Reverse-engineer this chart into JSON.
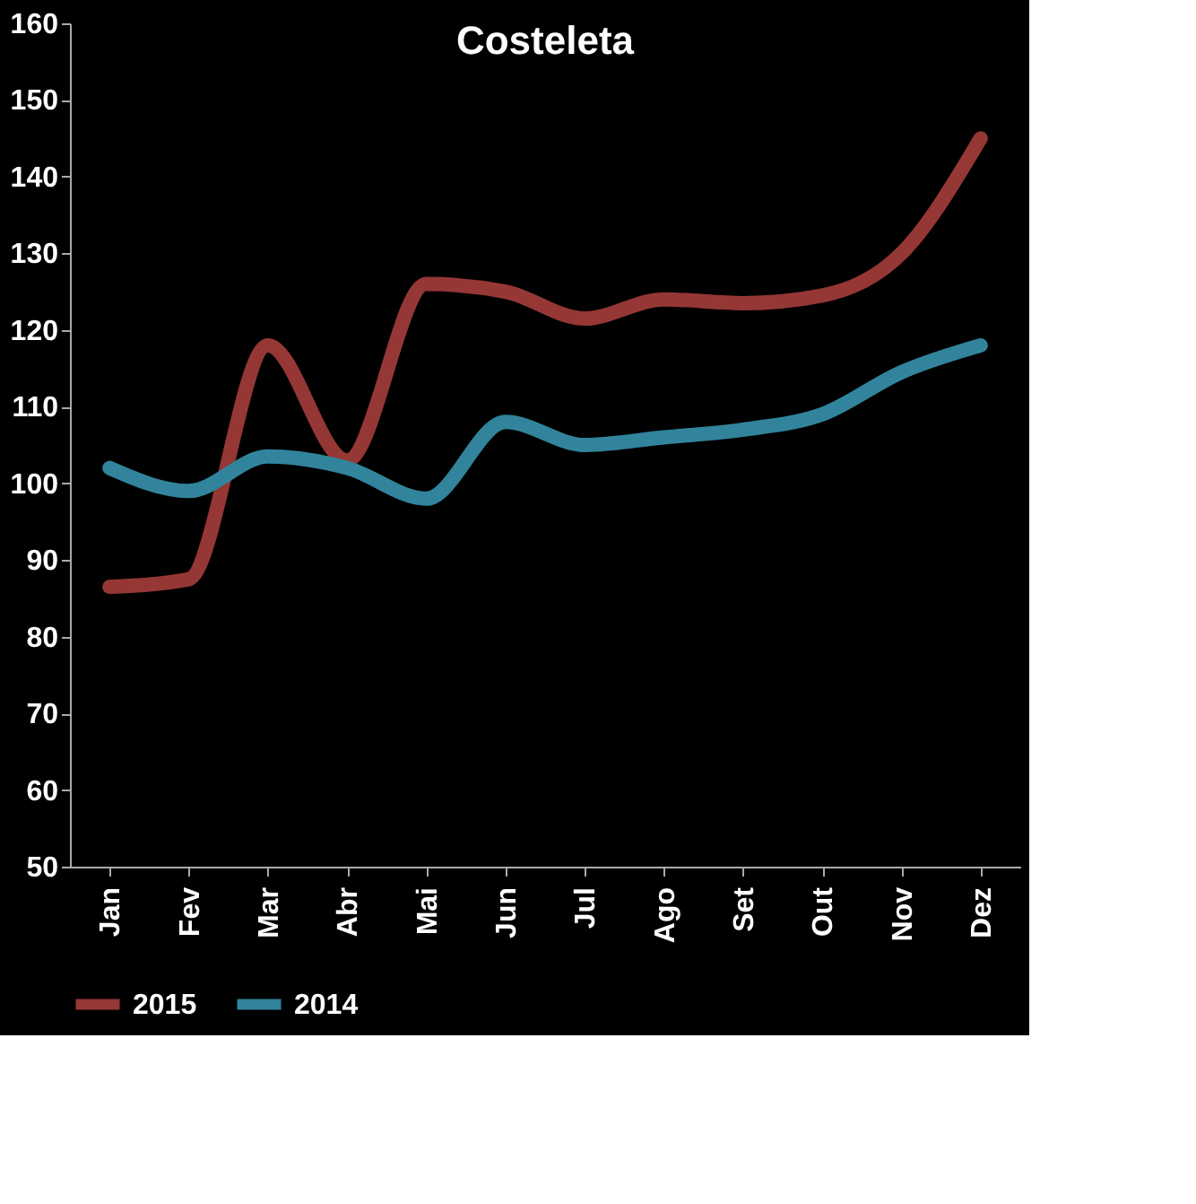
{
  "chart_data": {
    "type": "line",
    "title": "Costeleta",
    "categories": [
      "Jan",
      "Fev",
      "Mar",
      "Abr",
      "Mai",
      "Jun",
      "Jul",
      "Ago",
      "Set",
      "Out",
      "Nov",
      "Dez"
    ],
    "series": [
      {
        "name": "2015",
        "color": "#953735",
        "values": [
          86.5,
          87.5,
          118,
          103,
          126,
          125,
          121.5,
          124,
          123.5,
          124.5,
          130,
          145
        ]
      },
      {
        "name": "2014",
        "color": "#31849b",
        "values": [
          102,
          99,
          103.5,
          102,
          98,
          108,
          105,
          106,
          107,
          109,
          114.5,
          118
        ]
      }
    ],
    "ylim": [
      50,
      160
    ],
    "yticks": [
      50,
      60,
      70,
      80,
      90,
      100,
      110,
      120,
      130,
      140,
      150,
      160
    ],
    "grid": false,
    "legend": "bottom",
    "marker": "none",
    "line_style": "solid"
  }
}
